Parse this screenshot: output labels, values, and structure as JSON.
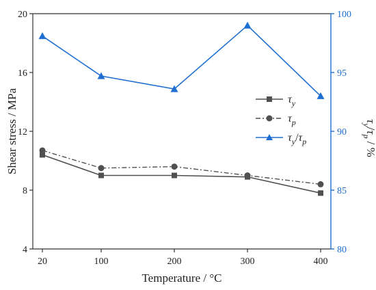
{
  "chart_data": {
    "type": "line",
    "xlabel": "Temperature / °C",
    "ylabel_left": "Shear stress / MPa",
    "ylabel_right": "τy/τp / %",
    "x_categories": [
      "20",
      "100",
      "200",
      "300",
      "400"
    ],
    "ylim_left": [
      4,
      20
    ],
    "yticks_left": [
      4,
      8,
      12,
      16,
      20
    ],
    "ylim_right": [
      80,
      100
    ],
    "yticks_right": [
      80,
      85,
      90,
      95,
      100
    ],
    "legend_position": "right",
    "grid": false,
    "series": [
      {
        "name": "τy",
        "axis": "left",
        "values": [
          10.4,
          9.0,
          9.0,
          8.9,
          7.8
        ],
        "marker": "square",
        "line_style": "solid",
        "color": "#505050"
      },
      {
        "name": "τp",
        "axis": "left",
        "values": [
          10.7,
          9.5,
          9.6,
          9.0,
          8.4
        ],
        "marker": "circle",
        "line_style": "dash-dot",
        "color": "#505050"
      },
      {
        "name": "τy/τp",
        "axis": "right",
        "values": [
          98.1,
          94.7,
          93.6,
          99.0,
          93.0
        ],
        "marker": "triangle",
        "line_style": "solid",
        "color": "#1f6fd2"
      }
    ]
  },
  "legend": {
    "tau_y": {
      "base": "τ",
      "sub": "y"
    },
    "tau_p": {
      "base": "τ",
      "sub": "p"
    },
    "ratio": {
      "base1": "τ",
      "sub1": "y",
      "slash": "/",
      "base2": "τ",
      "sub2": "p"
    }
  },
  "right_axis_title": {
    "base1": "τ",
    "sub1": "y",
    "slash": "/",
    "base2": "τ",
    "sub2": "p",
    "unit": " / %"
  },
  "colors": {
    "left_axis": "#333333",
    "right_axis": "#1f6fd2"
  }
}
